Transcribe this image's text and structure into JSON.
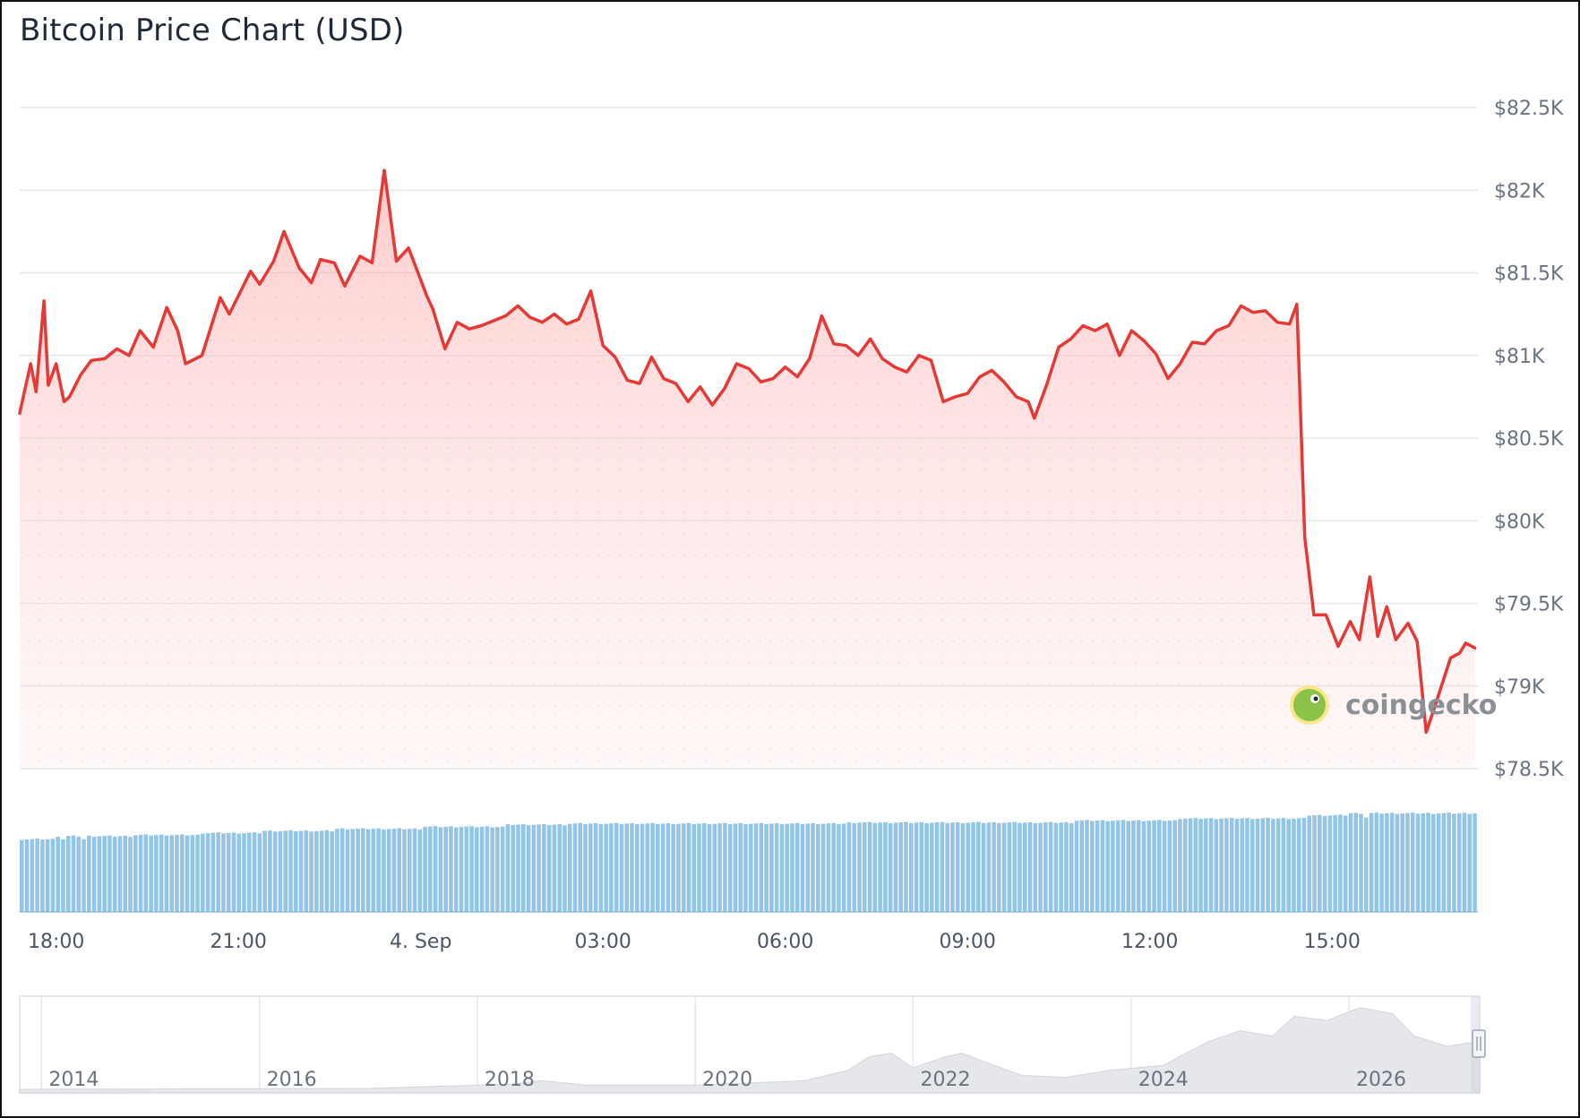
{
  "title": "Bitcoin Price Chart (USD)",
  "watermark": "coingecko",
  "colors": {
    "price_line": "#e53935",
    "price_fill": "#fecaca",
    "volume_bar": "#93c5e8",
    "volume_bar_edge": "#6fa8d0",
    "navigator_area": "#e5e7eb",
    "grid": "#e5e7eb"
  },
  "chart_data": {
    "type": "line",
    "title": "Bitcoin Price Chart (USD)",
    "xlabel": "",
    "ylabel": "",
    "grid": true,
    "ylim": [
      78500,
      82500
    ],
    "y_ticks": [
      {
        "value": 82500,
        "label": "$82.5K"
      },
      {
        "value": 82000,
        "label": "$82K"
      },
      {
        "value": 81500,
        "label": "$81.5K"
      },
      {
        "value": 81000,
        "label": "$81K"
      },
      {
        "value": 80500,
        "label": "$80.5K"
      },
      {
        "value": 80000,
        "label": "$80K"
      },
      {
        "value": 79500,
        "label": "$79.5K"
      },
      {
        "value": 79000,
        "label": "$79K"
      },
      {
        "value": 78500,
        "label": "$78.5K"
      }
    ],
    "x_unit": "hour",
    "x_range": [
      17.4,
      41.4
    ],
    "x_ticks": [
      {
        "value": 18,
        "label": "18:00"
      },
      {
        "value": 21,
        "label": "21:00"
      },
      {
        "value": 24,
        "label": "4. Sep"
      },
      {
        "value": 27,
        "label": "03:00"
      },
      {
        "value": 30,
        "label": "06:00"
      },
      {
        "value": 33,
        "label": "09:00"
      },
      {
        "value": 36,
        "label": "12:00"
      },
      {
        "value": 39,
        "label": "15:00"
      }
    ],
    "series": [
      {
        "type": "line",
        "points": [
          [
            17.4,
            80650
          ],
          [
            17.58,
            80950
          ],
          [
            17.67,
            80780
          ],
          [
            17.8,
            81330
          ],
          [
            17.87,
            80820
          ],
          [
            18.0,
            80950
          ],
          [
            18.13,
            80720
          ],
          [
            18.22,
            80750
          ],
          [
            18.4,
            80880
          ],
          [
            18.58,
            80970
          ],
          [
            18.8,
            80980
          ],
          [
            19.0,
            81040
          ],
          [
            19.2,
            81000
          ],
          [
            19.38,
            81150
          ],
          [
            19.6,
            81050
          ],
          [
            19.82,
            81290
          ],
          [
            20.0,
            81150
          ],
          [
            20.13,
            80950
          ],
          [
            20.4,
            81000
          ],
          [
            20.7,
            81350
          ],
          [
            20.85,
            81250
          ],
          [
            21.2,
            81510
          ],
          [
            21.35,
            81430
          ],
          [
            21.58,
            81570
          ],
          [
            21.75,
            81750
          ],
          [
            22.0,
            81530
          ],
          [
            22.2,
            81440
          ],
          [
            22.35,
            81580
          ],
          [
            22.58,
            81560
          ],
          [
            22.75,
            81420
          ],
          [
            23.0,
            81600
          ],
          [
            23.2,
            81560
          ],
          [
            23.4,
            82120
          ],
          [
            23.6,
            81570
          ],
          [
            23.8,
            81650
          ],
          [
            24.1,
            81360
          ],
          [
            24.2,
            81280
          ],
          [
            24.4,
            81040
          ],
          [
            24.6,
            81200
          ],
          [
            24.8,
            81160
          ],
          [
            25.0,
            81180
          ],
          [
            25.2,
            81210
          ],
          [
            25.4,
            81240
          ],
          [
            25.6,
            81300
          ],
          [
            25.8,
            81230
          ],
          [
            26.0,
            81200
          ],
          [
            26.2,
            81250
          ],
          [
            26.4,
            81190
          ],
          [
            26.6,
            81220
          ],
          [
            26.8,
            81390
          ],
          [
            27.0,
            81060
          ],
          [
            27.2,
            80990
          ],
          [
            27.4,
            80850
          ],
          [
            27.6,
            80830
          ],
          [
            27.8,
            80990
          ],
          [
            28.0,
            80860
          ],
          [
            28.2,
            80830
          ],
          [
            28.4,
            80720
          ],
          [
            28.6,
            80810
          ],
          [
            28.8,
            80700
          ],
          [
            29.0,
            80800
          ],
          [
            29.2,
            80950
          ],
          [
            29.4,
            80920
          ],
          [
            29.6,
            80840
          ],
          [
            29.8,
            80860
          ],
          [
            30.0,
            80930
          ],
          [
            30.2,
            80870
          ],
          [
            30.4,
            80980
          ],
          [
            30.6,
            81240
          ],
          [
            30.8,
            81070
          ],
          [
            31.0,
            81060
          ],
          [
            31.2,
            81000
          ],
          [
            31.4,
            81100
          ],
          [
            31.6,
            80980
          ],
          [
            31.8,
            80930
          ],
          [
            32.0,
            80900
          ],
          [
            32.2,
            81000
          ],
          [
            32.4,
            80970
          ],
          [
            32.6,
            80720
          ],
          [
            32.8,
            80750
          ],
          [
            33.0,
            80770
          ],
          [
            33.2,
            80870
          ],
          [
            33.4,
            80910
          ],
          [
            33.6,
            80840
          ],
          [
            33.8,
            80750
          ],
          [
            34.0,
            80720
          ],
          [
            34.1,
            80620
          ],
          [
            34.3,
            80820
          ],
          [
            34.5,
            81050
          ],
          [
            34.7,
            81100
          ],
          [
            34.9,
            81180
          ],
          [
            35.1,
            81150
          ],
          [
            35.3,
            81190
          ],
          [
            35.5,
            81000
          ],
          [
            35.7,
            81150
          ],
          [
            35.9,
            81090
          ],
          [
            36.1,
            81010
          ],
          [
            36.3,
            80860
          ],
          [
            36.5,
            80950
          ],
          [
            36.7,
            81080
          ],
          [
            36.9,
            81070
          ],
          [
            37.1,
            81150
          ],
          [
            37.3,
            81180
          ],
          [
            37.5,
            81300
          ],
          [
            37.7,
            81260
          ],
          [
            37.9,
            81270
          ],
          [
            38.1,
            81200
          ],
          [
            38.3,
            81190
          ],
          [
            38.42,
            81310
          ],
          [
            38.55,
            79900
          ],
          [
            38.7,
            79430
          ],
          [
            38.9,
            79430
          ],
          [
            39.1,
            79240
          ],
          [
            39.3,
            79390
          ],
          [
            39.45,
            79280
          ],
          [
            39.62,
            79660
          ],
          [
            39.75,
            79300
          ],
          [
            39.9,
            79480
          ],
          [
            40.05,
            79280
          ],
          [
            40.25,
            79380
          ],
          [
            40.4,
            79270
          ],
          [
            40.55,
            78720
          ],
          [
            40.65,
            78830
          ],
          [
            40.8,
            79000
          ],
          [
            40.95,
            79170
          ],
          [
            41.1,
            79200
          ],
          [
            41.2,
            79260
          ],
          [
            41.35,
            79230
          ]
        ]
      },
      {
        "type": "bar",
        "name": "volume",
        "description_values_relative": true,
        "points_hour_start": 17.4,
        "points_hour_end": 41.4,
        "bar_count": 282,
        "level_stops": [
          [
            17.4,
            0.7
          ],
          [
            18.0,
            0.73
          ],
          [
            19.3,
            0.74
          ],
          [
            20.4,
            0.76
          ],
          [
            21.4,
            0.78
          ],
          [
            22.6,
            0.8
          ],
          [
            24.0,
            0.82
          ],
          [
            25.4,
            0.84
          ],
          [
            26.4,
            0.85
          ],
          [
            31.0,
            0.86
          ],
          [
            34.8,
            0.88
          ],
          [
            36.5,
            0.9
          ],
          [
            38.6,
            0.93
          ],
          [
            39.3,
            0.95
          ],
          [
            41.4,
            0.93
          ]
        ]
      }
    ],
    "navigator": {
      "type": "area",
      "x_ticks": [
        "2014",
        "2016",
        "2018",
        "2020",
        "2022",
        "2024",
        "2026"
      ],
      "year_range": [
        2013.3,
        2026.7
      ],
      "points": [
        [
          2013.3,
          0.0
        ],
        [
          2016.5,
          0.01
        ],
        [
          2017.8,
          0.06
        ],
        [
          2018.1,
          0.1
        ],
        [
          2018.5,
          0.05
        ],
        [
          2019.5,
          0.05
        ],
        [
          2020.5,
          0.1
        ],
        [
          2020.9,
          0.22
        ],
        [
          2021.1,
          0.38
        ],
        [
          2021.3,
          0.42
        ],
        [
          2021.5,
          0.25
        ],
        [
          2021.8,
          0.38
        ],
        [
          2021.95,
          0.42
        ],
        [
          2022.2,
          0.3
        ],
        [
          2022.5,
          0.16
        ],
        [
          2022.9,
          0.14
        ],
        [
          2023.3,
          0.22
        ],
        [
          2023.8,
          0.28
        ],
        [
          2024.2,
          0.55
        ],
        [
          2024.5,
          0.68
        ],
        [
          2024.8,
          0.62
        ],
        [
          2025.0,
          0.85
        ],
        [
          2025.3,
          0.8
        ],
        [
          2025.6,
          0.95
        ],
        [
          2025.9,
          0.88
        ],
        [
          2026.1,
          0.62
        ],
        [
          2026.4,
          0.5
        ],
        [
          2026.6,
          0.54
        ],
        [
          2026.7,
          0.52
        ]
      ]
    }
  }
}
